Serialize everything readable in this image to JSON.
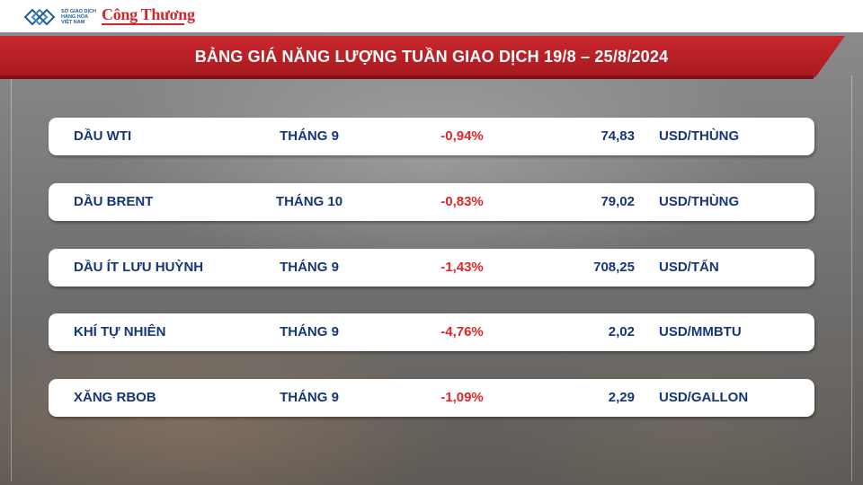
{
  "header": {
    "org_lines": [
      "SỞ GIAO DỊCH",
      "HÀNG HÓA",
      "VIỆT NAM"
    ],
    "brand": "Công Thương",
    "title": "BẢNG GIÁ NĂNG LƯỢNG TUẦN GIAO DỊCH 19/8 – 25/8/2024"
  },
  "rows": [
    {
      "name": "DẦU WTI",
      "term": "THÁNG 9",
      "change": "-0,94%",
      "price": "74,83",
      "unit": "USD/THÙNG"
    },
    {
      "name": "DẦU BRENT",
      "term": "THÁNG 10",
      "change": "-0,83%",
      "price": "79,02",
      "unit": "USD/THÙNG"
    },
    {
      "name": "DẦU ÍT LƯU HUỲNH",
      "term": "THÁNG 9",
      "change": "-1,43%",
      "price": "708,25",
      "unit": "USD/TẤN"
    },
    {
      "name": "KHÍ TỰ NHIÊN",
      "term": "THÁNG 9",
      "change": "-4,76%",
      "price": "2,02",
      "unit": "USD/MMBTU"
    },
    {
      "name": "XĂNG RBOB",
      "term": "THÁNG 9",
      "change": "-1,09%",
      "price": "2,29",
      "unit": "USD/GALLON"
    }
  ],
  "colors": {
    "banner_red": "#c8282d",
    "text_navy": "#16357a",
    "change_red": "#e0262b",
    "brand_red": "#d1262c"
  }
}
